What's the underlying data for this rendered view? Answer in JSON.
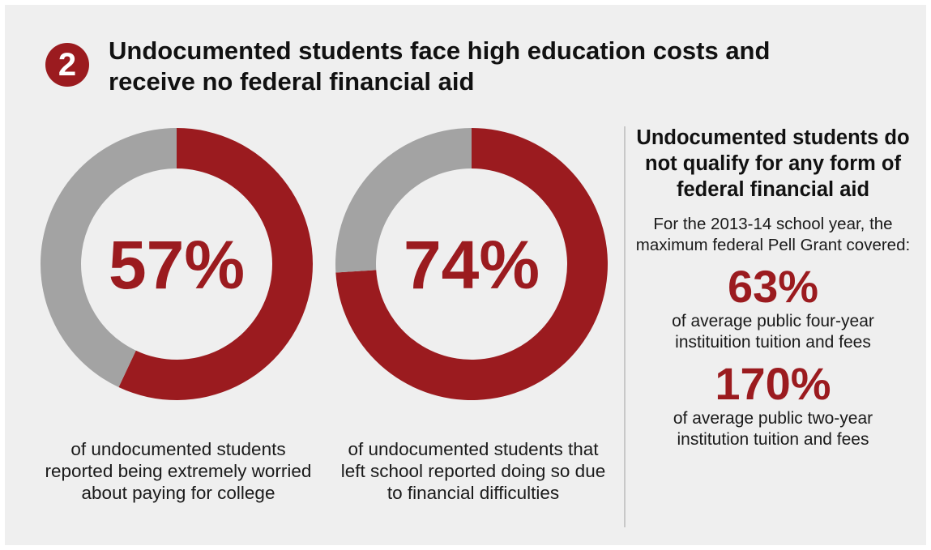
{
  "badge": "2",
  "title": "Undocumented students face high education costs and receive no federal financial aid",
  "colors": {
    "accent": "#9b1b1f",
    "remainder": "#a3a3a3",
    "background": "#efefef"
  },
  "chart_data": [
    {
      "type": "pie",
      "value_label": "57%",
      "values": [
        57,
        43
      ],
      "caption": "of undocumented students reported being extremely worried about paying for college"
    },
    {
      "type": "pie",
      "value_label": "74%",
      "values": [
        74,
        26
      ],
      "caption": "of undocumented students that left school reported doing so due to financial difficulties"
    }
  ],
  "sidebar": {
    "heading": "Undocumented students do not qualify for any form of federal financial aid",
    "intro": "For the 2013-14 school year, the maximum federal Pell Grant covered:",
    "stats": [
      {
        "value": "63%",
        "label": "of average public four-year instituition tuition and fees"
      },
      {
        "value": "170%",
        "label": "of average public two-year institution tuition and fees"
      }
    ]
  }
}
